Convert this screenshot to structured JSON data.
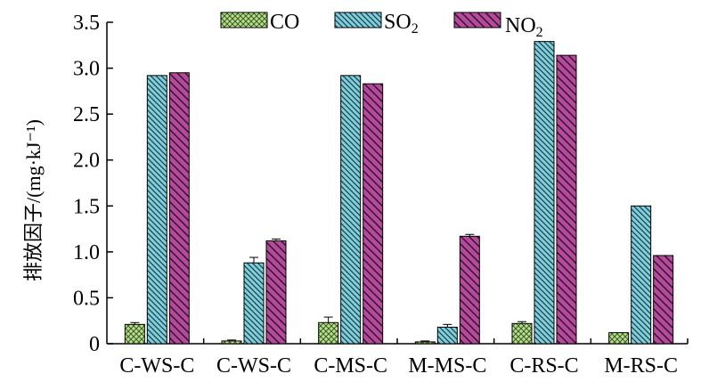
{
  "chart_data": {
    "type": "bar",
    "ylabel": "排放因子/(mg·kJ⁻¹)",
    "ylim": [
      0,
      3.5
    ],
    "yticks": [
      "0",
      "0.5",
      "1.0",
      "1.5",
      "2.0",
      "2.5",
      "3.0",
      "3.5"
    ],
    "ytick_values": [
      0,
      0.5,
      1.0,
      1.5,
      2.0,
      2.5,
      3.0,
      3.5
    ],
    "categories": [
      "C-WS-C",
      "C-WS-C",
      "C-MS-C",
      "M-MS-C",
      "C-RS-C",
      "M-RS-C"
    ],
    "legend_position": "top",
    "series": [
      {
        "name": "CO",
        "color": "#b8e08a",
        "pattern": "crosshatch",
        "values": [
          0.21,
          0.03,
          0.23,
          0.02,
          0.22,
          0.12
        ],
        "errors": [
          0.02,
          0.01,
          0.06,
          0.01,
          0.02,
          0.0
        ]
      },
      {
        "name": "SO2",
        "color": "#7ed0dc",
        "pattern": "backslash",
        "values": [
          2.92,
          0.88,
          2.92,
          0.18,
          3.29,
          1.5
        ],
        "errors": [
          0.0,
          0.06,
          0.0,
          0.03,
          0.0,
          0.0
        ]
      },
      {
        "name": "NO2",
        "color": "#b54a9c",
        "pattern": "backslash-wide",
        "values": [
          2.95,
          1.12,
          2.83,
          1.17,
          3.14,
          0.96
        ],
        "errors": [
          0.0,
          0.02,
          0.0,
          0.02,
          0.0,
          0.0
        ]
      }
    ]
  }
}
